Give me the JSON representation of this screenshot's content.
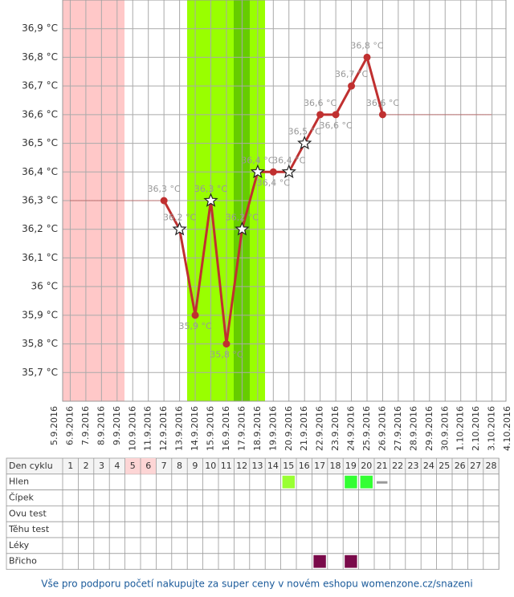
{
  "chart_data": {
    "type": "line",
    "categories": [
      "5.9.2016",
      "6.9.2016",
      "7.9.2016",
      "8.9.2016",
      "9.9.2016",
      "10.9.2016",
      "11.9.2016",
      "12.9.2016",
      "13.9.2016",
      "14.9.2016",
      "15.9.2016",
      "16.9.2016",
      "17.9.2016",
      "18.9.2016",
      "19.9.2016",
      "20.9.2016",
      "21.9.2016",
      "22.9.2016",
      "23.9.2016",
      "24.9.2016",
      "25.9.2016",
      "26.9.2016",
      "27.9.2016",
      "28.9.2016",
      "29.9.2016",
      "30.9.2016",
      "1.10.2016",
      "2.10.2016",
      "3.10.2016",
      "4.10.2016"
    ],
    "values": [
      null,
      null,
      null,
      null,
      null,
      null,
      null,
      36.3,
      36.2,
      35.9,
      36.3,
      35.8,
      36.2,
      36.4,
      36.4,
      36.4,
      36.5,
      36.6,
      36.6,
      36.7,
      36.8,
      36.6,
      null,
      null,
      null,
      null,
      null,
      null,
      null,
      null
    ],
    "value_labels": [
      null,
      null,
      null,
      null,
      null,
      null,
      null,
      "36,3 °C",
      "36,2 °C",
      "35,9 °C",
      "36,3 °C",
      "35,8 °C",
      "36,2 °C",
      "36,4 °C",
      "36,4 °C",
      "36,4 °C",
      "36,5 °C",
      "36,6 °C",
      "36,6 °C",
      "36,7 °C",
      "36,8 °C",
      "36,6 °C",
      null,
      null,
      null,
      null,
      null,
      null,
      null,
      null
    ],
    "markers": [
      null,
      null,
      null,
      null,
      null,
      null,
      null,
      "dot",
      "star",
      "dot",
      "star",
      "dot",
      "star",
      "star",
      "dot",
      "star",
      "star",
      "dot",
      "dot",
      "dot",
      "dot",
      "dot",
      null,
      null,
      null,
      null,
      null,
      null,
      null,
      null
    ],
    "label_positions": [
      null,
      null,
      null,
      null,
      null,
      null,
      null,
      "above",
      "above",
      "below",
      "above",
      "below",
      "above",
      "above",
      "below",
      "above",
      "above",
      "above",
      "below",
      "above",
      "above",
      "above",
      null,
      null,
      null,
      null,
      null,
      null,
      null,
      null
    ],
    "color": "#c03030",
    "ylim": [
      35.6,
      37.0
    ],
    "yticks": [
      {
        "value": 35.7,
        "label": "35,7 °C"
      },
      {
        "value": 35.8,
        "label": "35,8 °C"
      },
      {
        "value": 35.9,
        "label": "35,9 °C"
      },
      {
        "value": 36,
        "label": "36 °C"
      },
      {
        "value": 36.1,
        "label": "36,1 °C"
      },
      {
        "value": 36.2,
        "label": "36,2 °C"
      },
      {
        "value": 36.3,
        "label": "36,3 °C"
      },
      {
        "value": 36.4,
        "label": "36,4 °C"
      },
      {
        "value": 36.5,
        "label": "36,5 °C"
      },
      {
        "value": 36.6,
        "label": "36,6 °C"
      },
      {
        "value": 36.7,
        "label": "36,7 °C"
      },
      {
        "value": 36.8,
        "label": "36,8 °C"
      },
      {
        "value": 36.9,
        "label": "36,9 °C"
      }
    ],
    "grid": true
  },
  "table": {
    "header": "Den cyklu",
    "days": [
      "1",
      "2",
      "3",
      "4",
      "5",
      "6",
      "7",
      "8",
      "9",
      "10",
      "11",
      "12",
      "13",
      "14",
      "15",
      "16",
      "17",
      "18",
      "19",
      "20",
      "21",
      "22",
      "23",
      "24",
      "25",
      "26",
      "27",
      "28"
    ],
    "day_colors": [
      null,
      null,
      null,
      null,
      "#fdd5d5",
      "#fdd5d5",
      null,
      null,
      null,
      null,
      null,
      null,
      null,
      null,
      null,
      null,
      null,
      null,
      null,
      null,
      null,
      null,
      null,
      null,
      null,
      null,
      null,
      null
    ],
    "rows": [
      {
        "label": "Hlen",
        "cells": [
          null,
          null,
          null,
          null,
          null,
          null,
          null,
          null,
          null,
          null,
          null,
          null,
          null,
          null,
          "#99ff33",
          null,
          null,
          null,
          "#33ff33",
          "#33ff33",
          "dash",
          null,
          null,
          null,
          null,
          null,
          null,
          null
        ]
      },
      {
        "label": "Čípek",
        "cells": [
          null,
          null,
          null,
          null,
          null,
          null,
          null,
          null,
          null,
          null,
          null,
          null,
          null,
          null,
          null,
          null,
          null,
          null,
          null,
          null,
          null,
          null,
          null,
          null,
          null,
          null,
          null,
          null
        ]
      },
      {
        "label": "Ovu test",
        "cells": [
          null,
          null,
          null,
          null,
          null,
          null,
          null,
          null,
          null,
          null,
          null,
          null,
          null,
          null,
          null,
          null,
          null,
          null,
          null,
          null,
          null,
          null,
          null,
          null,
          null,
          null,
          null,
          null
        ]
      },
      {
        "label": "Těhu test",
        "cells": [
          null,
          null,
          null,
          null,
          null,
          null,
          null,
          null,
          null,
          null,
          null,
          null,
          null,
          null,
          null,
          null,
          null,
          null,
          null,
          null,
          null,
          null,
          null,
          null,
          null,
          null,
          null,
          null
        ]
      },
      {
        "label": "Léky",
        "cells": [
          null,
          null,
          null,
          null,
          null,
          null,
          null,
          null,
          null,
          null,
          null,
          null,
          null,
          null,
          null,
          null,
          null,
          null,
          null,
          null,
          null,
          null,
          null,
          null,
          null,
          null,
          null,
          null
        ]
      },
      {
        "label": "Břicho",
        "cells": [
          null,
          null,
          null,
          null,
          null,
          null,
          null,
          null,
          null,
          null,
          null,
          null,
          null,
          null,
          null,
          null,
          "#7a0a4a",
          null,
          "#7a0a4a",
          null,
          null,
          null,
          null,
          null,
          null,
          null,
          null,
          null
        ]
      }
    ]
  },
  "footer": "Vše pro podporu početí nakupujte za super ceny v novém eshopu womenzone.cz/snazeni"
}
